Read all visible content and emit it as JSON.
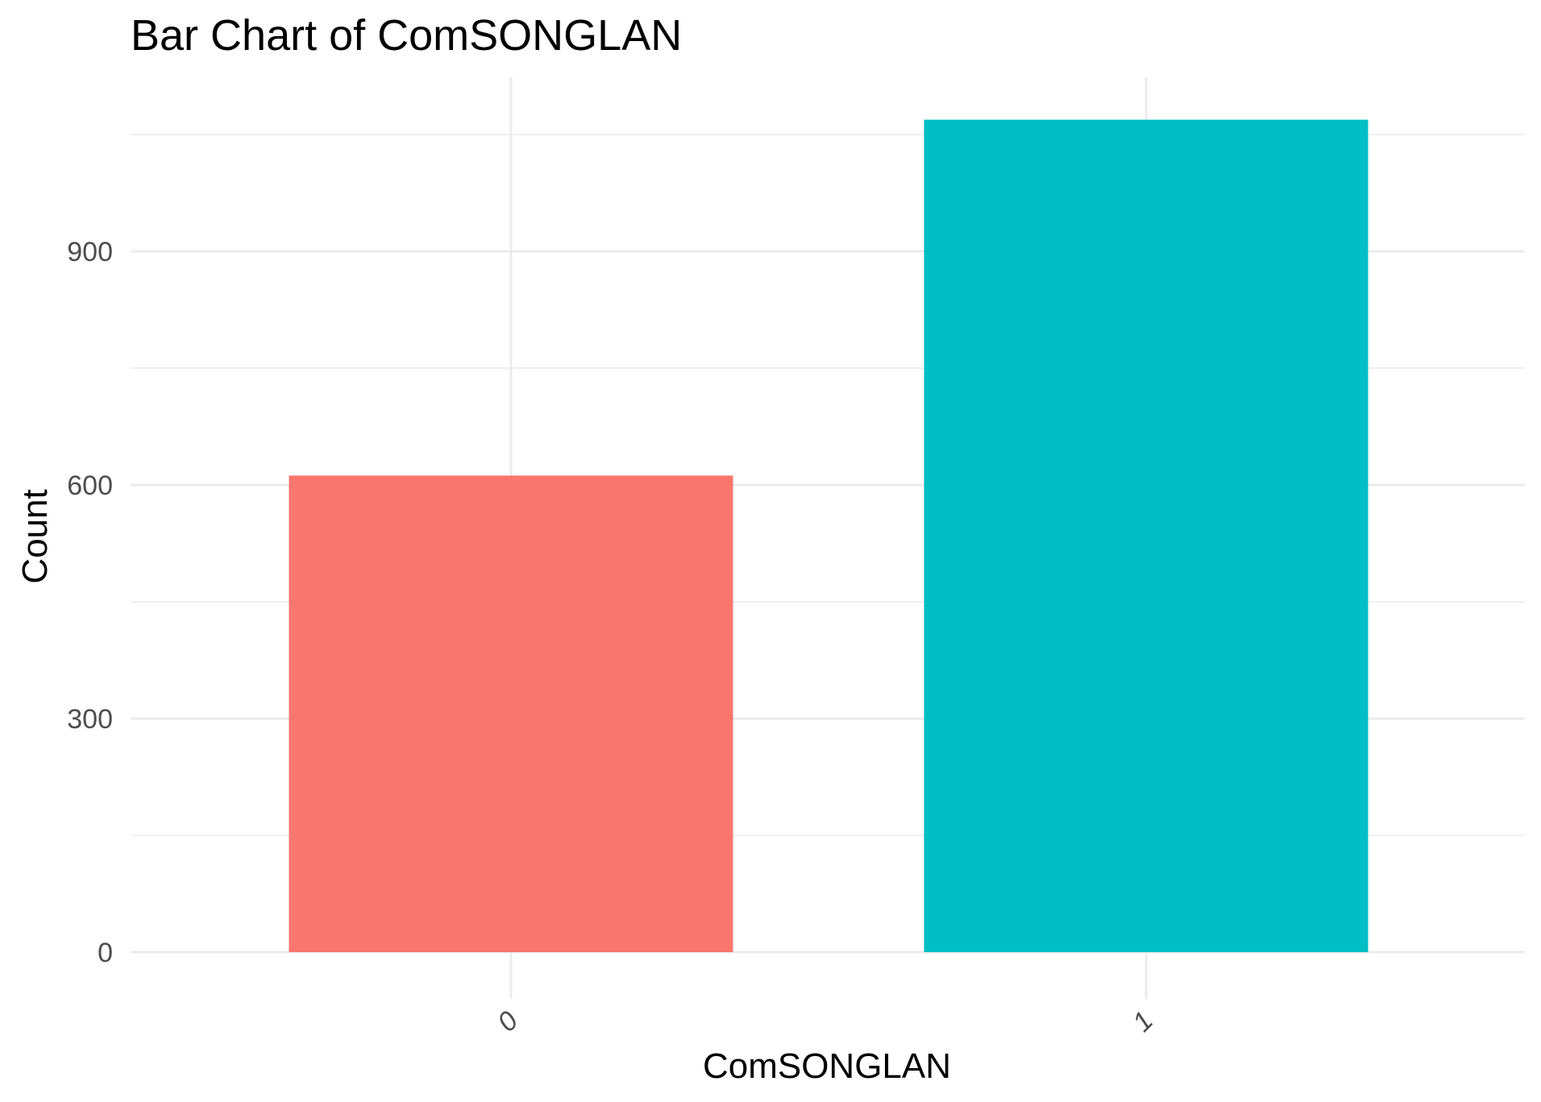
{
  "chart_data": {
    "type": "bar",
    "title": "Bar Chart of  ComSONGLAN",
    "xlabel": "ComSONGLAN",
    "ylabel": "Count",
    "categories": [
      "0",
      "1"
    ],
    "values": [
      612,
      1069
    ],
    "colors": [
      "#F8766D",
      "#00BFC4"
    ],
    "ylim": [
      0,
      1125
    ],
    "yticks": [
      0,
      300,
      600,
      900
    ],
    "grid": true,
    "legend": "none"
  }
}
